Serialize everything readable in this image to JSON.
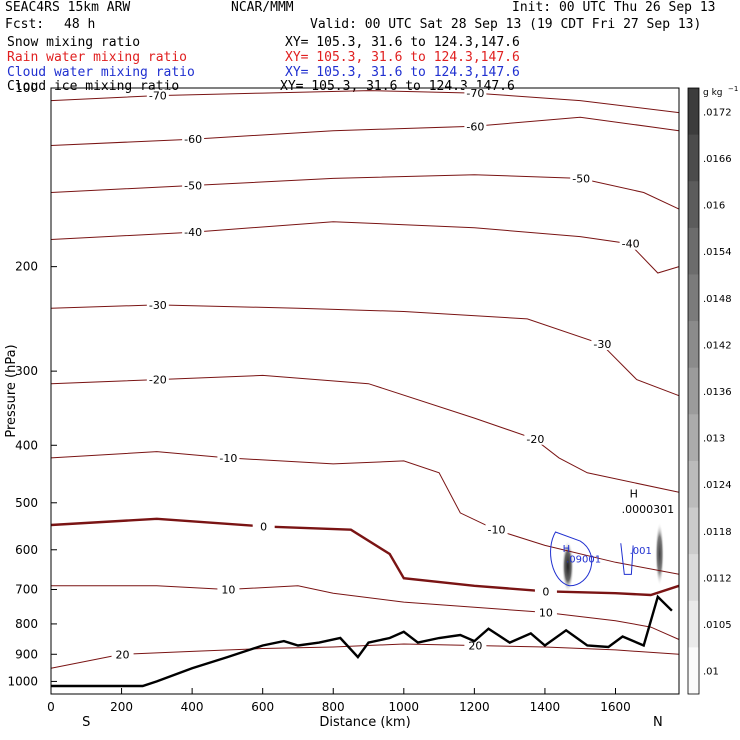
{
  "header": {
    "title": "SEAC4RS 15km ARW",
    "org": "NCAR/MMM",
    "init": "Init: 00 UTC Thu 26 Sep 13",
    "fcst_label": "Fcst:",
    "fcst_value": "48 h",
    "valid": "Valid: 00 UTC Sat 28 Sep 13 (19 CDT Fri 27 Sep 13)"
  },
  "legend": [
    {
      "name": "Snow mixing ratio",
      "xy": "XY= 105.3, 31.6 to 124.3,147.6",
      "color": "#000000"
    },
    {
      "name": "Rain water mixing ratio",
      "xy": "XY= 105.3, 31.6 to 124.3,147.6",
      "color": "#e02020"
    },
    {
      "name": "Cloud water mixing ratio",
      "xy": "XY= 105.3, 31.6 to 124.3,147.6",
      "color": "#2030d0"
    },
    {
      "name": "Cloud ice mixing ratio",
      "xy": "XY= 105.3, 31.6 to 124.3,147.6",
      "color": "#000000"
    }
  ],
  "chart_data": {
    "type": "line",
    "xlabel": "Distance (km)",
    "ylabel": "Pressure (hPa)",
    "xlim": [
      0,
      1780
    ],
    "ylim": [
      100,
      1050
    ],
    "y_scale": "log",
    "x_ticks": [
      0,
      200,
      400,
      600,
      800,
      1000,
      1200,
      1400,
      1600
    ],
    "y_ticks": [
      100,
      200,
      300,
      400,
      500,
      600,
      700,
      800,
      900,
      1000
    ],
    "x_end_labels": {
      "left": "S",
      "right": "N"
    },
    "temperature_contours": [
      {
        "level": -70,
        "points": [
          [
            0,
            105
          ],
          [
            300,
            103
          ],
          [
            600,
            102
          ],
          [
            900,
            101
          ],
          [
            1200,
            102
          ],
          [
            1500,
            105
          ],
          [
            1780,
            110
          ]
        ]
      },
      {
        "level": -60,
        "points": [
          [
            0,
            125
          ],
          [
            400,
            122
          ],
          [
            800,
            118
          ],
          [
            1200,
            116
          ],
          [
            1500,
            112
          ],
          [
            1780,
            118
          ]
        ]
      },
      {
        "level": -50,
        "points": [
          [
            0,
            150
          ],
          [
            400,
            146
          ],
          [
            800,
            142
          ],
          [
            1200,
            140
          ],
          [
            1500,
            142
          ],
          [
            1680,
            150
          ],
          [
            1780,
            160
          ]
        ]
      },
      {
        "level": -40,
        "points": [
          [
            0,
            180
          ],
          [
            400,
            175
          ],
          [
            800,
            168
          ],
          [
            1200,
            172
          ],
          [
            1500,
            178
          ],
          [
            1640,
            183
          ],
          [
            1720,
            205
          ],
          [
            1780,
            200
          ]
        ]
      },
      {
        "level": -30,
        "points": [
          [
            0,
            235
          ],
          [
            300,
            232
          ],
          [
            700,
            235
          ],
          [
            1000,
            238
          ],
          [
            1350,
            245
          ],
          [
            1560,
            270
          ],
          [
            1660,
            310
          ],
          [
            1780,
            330
          ]
        ]
      },
      {
        "level": -20,
        "points": [
          [
            0,
            315
          ],
          [
            300,
            310
          ],
          [
            600,
            305
          ],
          [
            900,
            315
          ],
          [
            1200,
            360
          ],
          [
            1370,
            390
          ],
          [
            1440,
            420
          ],
          [
            1520,
            445
          ],
          [
            1780,
            480
          ]
        ]
      },
      {
        "level": -10,
        "points": [
          [
            0,
            420
          ],
          [
            300,
            410
          ],
          [
            500,
            420
          ],
          [
            800,
            430
          ],
          [
            1000,
            425
          ],
          [
            1100,
            445
          ],
          [
            1160,
            520
          ],
          [
            1260,
            555
          ],
          [
            1400,
            590
          ],
          [
            1600,
            630
          ],
          [
            1780,
            660
          ]
        ]
      },
      {
        "level": 0,
        "points": [
          [
            0,
            545
          ],
          [
            300,
            532
          ],
          [
            600,
            548
          ],
          [
            850,
            555
          ],
          [
            960,
            610
          ],
          [
            1000,
            670
          ],
          [
            1200,
            690
          ],
          [
            1400,
            705
          ],
          [
            1600,
            710
          ],
          [
            1700,
            715
          ],
          [
            1780,
            690
          ]
        ]
      },
      {
        "level": 10,
        "points": [
          [
            0,
            690
          ],
          [
            300,
            690
          ],
          [
            500,
            700
          ],
          [
            700,
            690
          ],
          [
            800,
            710
          ],
          [
            1000,
            735
          ],
          [
            1200,
            750
          ],
          [
            1400,
            765
          ],
          [
            1600,
            790
          ],
          [
            1700,
            810
          ],
          [
            1780,
            850
          ]
        ]
      },
      {
        "level": 20,
        "points": [
          [
            0,
            950
          ],
          [
            200,
            900
          ],
          [
            400,
            890
          ],
          [
            600,
            880
          ],
          [
            800,
            875
          ],
          [
            1000,
            865
          ],
          [
            1200,
            870
          ],
          [
            1400,
            875
          ],
          [
            1600,
            885
          ],
          [
            1780,
            900
          ]
        ]
      }
    ],
    "terrain_profile": [
      [
        0,
        1018
      ],
      [
        260,
        1018
      ],
      [
        300,
        1000
      ],
      [
        400,
        950
      ],
      [
        500,
        910
      ],
      [
        600,
        870
      ],
      [
        660,
        855
      ],
      [
        700,
        870
      ],
      [
        760,
        860
      ],
      [
        820,
        845
      ],
      [
        870,
        910
      ],
      [
        900,
        860
      ],
      [
        960,
        845
      ],
      [
        1000,
        825
      ],
      [
        1040,
        860
      ],
      [
        1100,
        845
      ],
      [
        1160,
        835
      ],
      [
        1200,
        855
      ],
      [
        1240,
        815
      ],
      [
        1300,
        860
      ],
      [
        1360,
        830
      ],
      [
        1400,
        870
      ],
      [
        1460,
        820
      ],
      [
        1520,
        870
      ],
      [
        1580,
        875
      ],
      [
        1620,
        840
      ],
      [
        1680,
        870
      ],
      [
        1720,
        720
      ],
      [
        1760,
        760
      ]
    ],
    "blue_contour_labels": [
      {
        "x": 1460,
        "p": 630,
        "text": ".09001"
      },
      {
        "x": 1640,
        "p": 610,
        "text": ".001"
      }
    ],
    "ice_annotation": {
      "x": 1640,
      "p": 508,
      "text": ".0000301"
    },
    "max_markers": [
      "H",
      "H"
    ],
    "colorbar": {
      "unit_label": "g kg",
      "unit_exponent": "−1",
      "ticks": [
        ".0172",
        ".0166",
        ".016",
        ".0154",
        ".0148",
        ".0142",
        ".0136",
        ".013",
        ".0124",
        ".0118",
        ".0112",
        ".0105",
        ".01"
      ]
    }
  }
}
